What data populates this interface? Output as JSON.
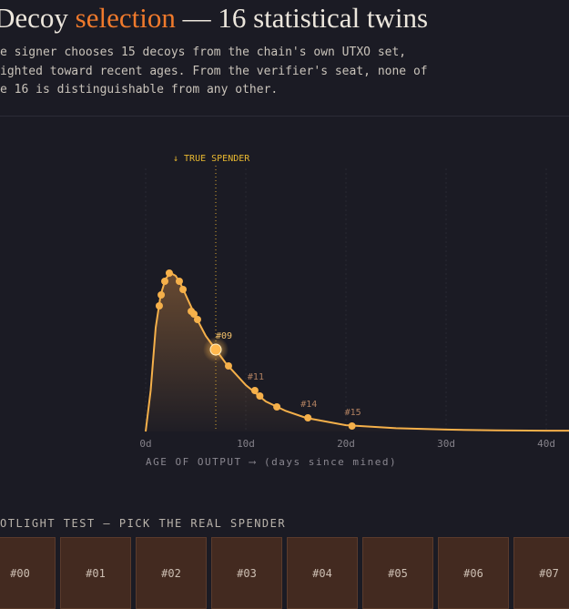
{
  "header": {
    "title_parts": [
      "Decoy ",
      "selection",
      " — 16 statistical twins"
    ],
    "description": [
      "e signer chooses 15 decoys from the chain's own UTXO set,",
      "ighted toward recent ages. From the verifier's seat, none of",
      "e 16 is distinguishable from any other."
    ]
  },
  "chart_data": {
    "type": "line",
    "color": "#f5b04a",
    "grid": true,
    "x_label": "AGE OF OUTPUT ⟶ (days since mined)",
    "xlim": [
      0,
      42.27
    ],
    "ylim": [
      0,
      1
    ],
    "xticks": [
      {
        "value": 0,
        "label": "0d"
      },
      {
        "value": 10,
        "label": "10d"
      },
      {
        "value": 20,
        "label": "20d"
      },
      {
        "value": 30,
        "label": "30d"
      },
      {
        "value": 40,
        "label": "40d"
      }
    ],
    "curve": {
      "x": [
        0,
        0.5,
        1,
        1.5,
        2,
        2.5,
        3,
        3.5,
        4,
        5,
        6,
        7,
        8,
        10,
        12,
        14,
        16,
        20,
        25,
        30,
        35,
        40,
        42.27
      ],
      "y": [
        0,
        0.15,
        0.38,
        0.5,
        0.56,
        0.58,
        0.57,
        0.54,
        0.5,
        0.42,
        0.35,
        0.3,
        0.25,
        0.17,
        0.11,
        0.075,
        0.05,
        0.023,
        0.012,
        0.007,
        0.004,
        0.003,
        0.003
      ]
    },
    "members": {
      "x": [
        1.36,
        1.55,
        1.91,
        2.36,
        3.36,
        3.73,
        4.55,
        4.82,
        5.18,
        7.0,
        8.27,
        10.9,
        11.4,
        13.1,
        16.2,
        20.6
      ],
      "y": [
        0.46,
        0.5,
        0.55,
        0.58,
        0.55,
        0.52,
        0.44,
        0.43,
        0.41,
        0.3,
        0.24,
        0.15,
        0.13,
        0.09,
        0.05,
        0.02
      ],
      "labels": [
        null,
        null,
        null,
        null,
        null,
        null,
        null,
        null,
        null,
        "#09",
        null,
        "#11",
        null,
        null,
        "#14",
        "#15"
      ]
    },
    "annotation": {
      "text": "↓ TRUE SPENDER",
      "member": 9
    }
  },
  "spotlight": {
    "title": "OTLIGHT TEST — PICK THE REAL SPENDER",
    "buttons": [
      "#00",
      "#01",
      "#02",
      "#03",
      "#04",
      "#05",
      "#06",
      "#07"
    ]
  }
}
